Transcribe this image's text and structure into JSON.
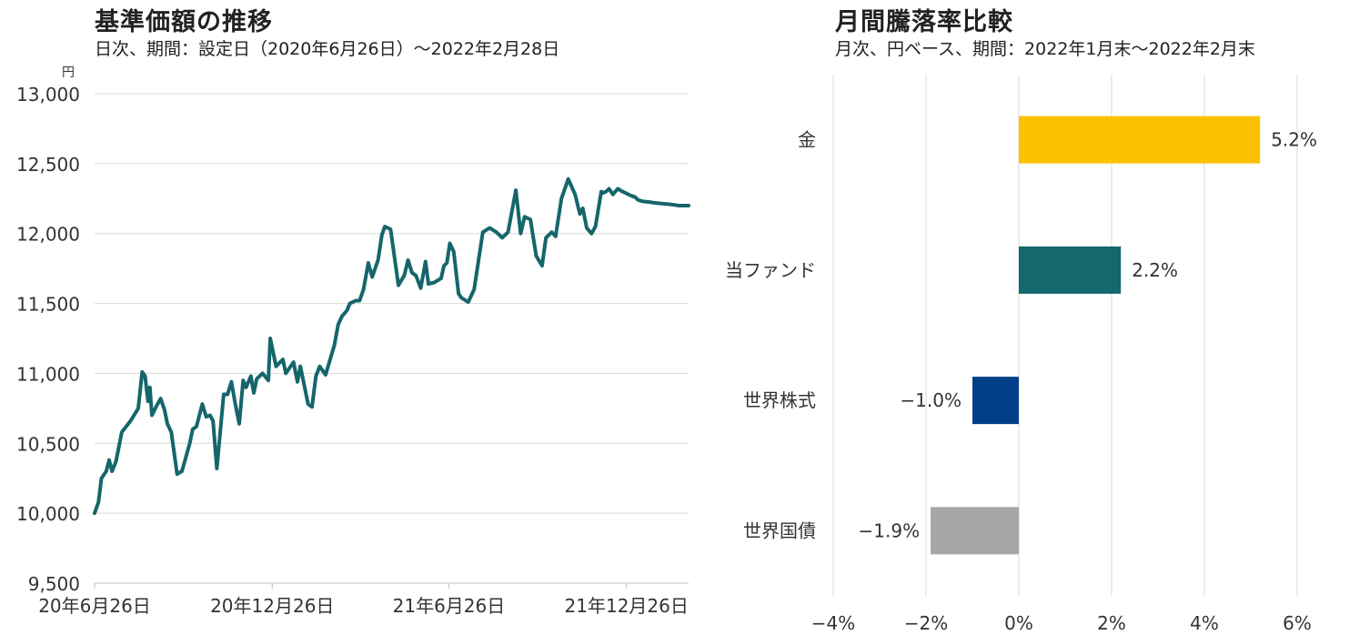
{
  "colors": {
    "line": "#15666b",
    "gold": "#fbc200",
    "fund": "#13696e",
    "world_stocks": "#003f87",
    "world_bonds": "#a6a6a6",
    "grid": "#d9d9d9"
  },
  "chart_data": [
    {
      "type": "line",
      "title": "基準価額の推移",
      "subtitle": "日次、期間：設定日（2020年6月26日）～2022年2月28日",
      "ylabel": "円",
      "ylim": [
        9500,
        13000
      ],
      "ytick_labels": [
        "13,000",
        "12,500",
        "12,000",
        "11,500",
        "11,000",
        "10,500",
        "10,000",
        "9,500"
      ],
      "ytick_values": [
        13000,
        12500,
        12000,
        11500,
        11000,
        10500,
        10000,
        9500
      ],
      "x_range": [
        "2020-06-26",
        "2022-02-28"
      ],
      "xtick_labels": [
        "20年6月26日",
        "20年12月26日",
        "21年6月26日",
        "21年12月26日"
      ],
      "xtick_values": [
        "2020-06-26",
        "2020-12-26",
        "2021-06-26",
        "2021-12-26"
      ],
      "grid": true,
      "series": [
        {
          "x": [
            "2020-06-26",
            "2020-06-30",
            "2020-07-03",
            "2020-07-08",
            "2020-07-11",
            "2020-07-14",
            "2020-07-18",
            "2020-07-24",
            "2020-08-02",
            "2020-08-10",
            "2020-08-14",
            "2020-08-17",
            "2020-08-20",
            "2020-08-22",
            "2020-08-24",
            "2020-08-29",
            "2020-09-02",
            "2020-09-06",
            "2020-09-09",
            "2020-09-13",
            "2020-09-19",
            "2020-09-24",
            "2020-10-02",
            "2020-10-05",
            "2020-10-09",
            "2020-10-15",
            "2020-10-19",
            "2020-10-23",
            "2020-10-26",
            "2020-10-30",
            "2020-11-06",
            "2020-11-10",
            "2020-11-14",
            "2020-11-18",
            "2020-11-22",
            "2020-11-26",
            "2020-11-29",
            "2020-12-04",
            "2020-12-07",
            "2020-12-10",
            "2020-12-16",
            "2020-12-22",
            "2020-12-24",
            "2020-12-30",
            "2021-01-06",
            "2021-01-09",
            "2021-01-17",
            "2021-01-21",
            "2021-01-24",
            "2021-02-01",
            "2021-02-05",
            "2021-02-09",
            "2021-02-13",
            "2021-02-19",
            "2021-02-28",
            "2021-03-04",
            "2021-03-08",
            "2021-03-13",
            "2021-03-16",
            "2021-03-22",
            "2021-03-26",
            "2021-03-30",
            "2021-04-04",
            "2021-04-08",
            "2021-04-14",
            "2021-04-18",
            "2021-04-21",
            "2021-04-27",
            "2021-05-05",
            "2021-05-11",
            "2021-05-15",
            "2021-05-19",
            "2021-05-23",
            "2021-05-28",
            "2021-06-02",
            "2021-06-05",
            "2021-06-11",
            "2021-06-18",
            "2021-06-21",
            "2021-06-24",
            "2021-06-27",
            "2021-07-01",
            "2021-07-06",
            "2021-07-09",
            "2021-07-16",
            "2021-07-22",
            "2021-07-31",
            "2021-08-07",
            "2021-08-14",
            "2021-08-20",
            "2021-08-26",
            "2021-09-03",
            "2021-09-08",
            "2021-09-12",
            "2021-09-18",
            "2021-09-24",
            "2021-09-30",
            "2021-10-04",
            "2021-10-10",
            "2021-10-14",
            "2021-10-20",
            "2021-10-27",
            "2021-11-03",
            "2021-11-08",
            "2021-11-11",
            "2021-11-15",
            "2021-11-20",
            "2021-11-24",
            "2021-11-30",
            "2021-12-02",
            "2021-12-05",
            "2021-12-08",
            "2021-12-12",
            "2021-12-17",
            "2021-12-22",
            "2021-12-25",
            "2021-12-31",
            "2022-01-04",
            "2022-01-07",
            "2022-01-12",
            "2022-01-19",
            "2022-01-23",
            "2022-01-31",
            "2022-02-07",
            "2022-02-13",
            "2022-02-18",
            "2022-02-24",
            "2022-02-28"
          ],
          "values": [
            10000,
            10080,
            10250,
            10300,
            10380,
            10300,
            10370,
            10580,
            10660,
            10750,
            11010,
            10980,
            10800,
            10900,
            10700,
            10770,
            10820,
            10740,
            10640,
            10580,
            10280,
            10300,
            10500,
            10600,
            10620,
            10780,
            10690,
            10700,
            10660,
            10320,
            10850,
            10850,
            10940,
            10780,
            10640,
            10950,
            10900,
            10980,
            10860,
            10960,
            11000,
            10950,
            11250,
            11050,
            11100,
            11000,
            11080,
            10940,
            11050,
            10780,
            10760,
            10980,
            11050,
            10990,
            11200,
            11350,
            11410,
            11450,
            11500,
            11520,
            11520,
            11600,
            11790,
            11690,
            11810,
            11990,
            12050,
            12030,
            11630,
            11700,
            11810,
            11720,
            11700,
            11610,
            11800,
            11640,
            11650,
            11680,
            11770,
            11790,
            11930,
            11870,
            11570,
            11540,
            11510,
            11600,
            12010,
            12040,
            12010,
            11970,
            12010,
            12310,
            12000,
            12120,
            12100,
            11840,
            11770,
            11970,
            12010,
            11980,
            12250,
            12390,
            12280,
            12140,
            12180,
            12040,
            12000,
            12050,
            12300,
            12290,
            12300,
            12320,
            12280,
            12320,
            12300,
            12290,
            12270,
            12260,
            12240,
            12230,
            12225,
            12220,
            12215,
            12210,
            12205,
            12200,
            12200,
            12200
          ]
        }
      ]
    },
    {
      "type": "bar",
      "orientation": "horizontal",
      "title": "月間騰落率比較",
      "subtitle": "月次、円ベース、期間：2022年1月末～2022年2月末",
      "categories": [
        "金",
        "当ファンド",
        "世界株式",
        "世界国債"
      ],
      "values": [
        5.2,
        2.2,
        -1.0,
        -1.9
      ],
      "value_labels": [
        "5.2%",
        "2.2%",
        "−1.0%",
        "−1.9%"
      ],
      "bar_colors": [
        "#fbc200",
        "#13696e",
        "#003f87",
        "#a6a6a6"
      ],
      "xlim": [
        -4,
        6
      ],
      "xtick_values": [
        -4,
        -2,
        0,
        2,
        4,
        6
      ],
      "xtick_labels": [
        "−4%",
        "−2%",
        "0%",
        "2%",
        "4%",
        "6%"
      ],
      "grid": true
    }
  ]
}
